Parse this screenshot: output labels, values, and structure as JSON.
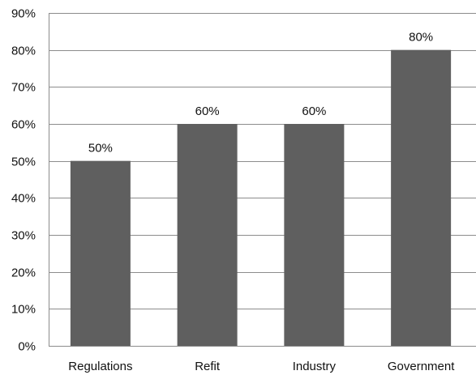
{
  "chart_data": {
    "type": "bar",
    "categories": [
      "Regulations",
      "Refit",
      "Industry",
      "Government"
    ],
    "values": [
      50,
      60,
      60,
      80
    ],
    "data_labels": [
      "50%",
      "60%",
      "60%",
      "80%"
    ],
    "title": "",
    "xlabel": "",
    "ylabel": "",
    "ylim": [
      0,
      90
    ],
    "yticks": [
      0,
      10,
      20,
      30,
      40,
      50,
      60,
      70,
      80,
      90
    ],
    "ytick_labels": [
      "0%",
      "10%",
      "20%",
      "30%",
      "40%",
      "50%",
      "60%",
      "70%",
      "80%",
      "90%"
    ],
    "grid": true,
    "legend": "none",
    "colors": {
      "bar": "#5f5f5f",
      "grid": "#8c8c8c",
      "text": "#111111"
    }
  }
}
